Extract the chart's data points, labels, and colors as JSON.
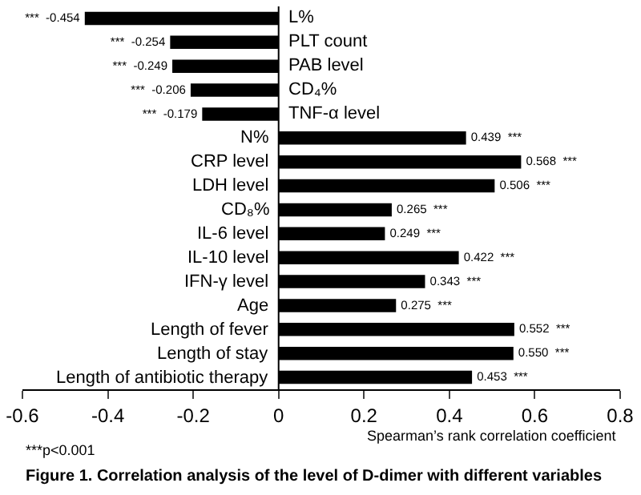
{
  "chart_data": {
    "type": "bar",
    "orientation": "horizontal",
    "title": "Figure 1. Correlation analysis of the level of D-dimer with different variables",
    "xlabel": "Spearman’s rank correlation coefficient",
    "categories": [
      "L%",
      "PLT count",
      "PAB level",
      "CD₄%",
      "TNF-α level",
      "N%",
      "CRP level",
      "LDH level",
      "CD₈%",
      "IL-6 level",
      "IL-10 level",
      "IFN-γ level",
      "Age",
      "Length of fever",
      "Length of stay",
      "Length of antibiotic therapy"
    ],
    "values": [
      -0.454,
      -0.254,
      -0.249,
      -0.206,
      -0.179,
      0.439,
      0.568,
      0.506,
      0.265,
      0.249,
      0.422,
      0.343,
      0.275,
      0.552,
      0.55,
      0.453
    ],
    "value_labels": [
      "***  -0.454",
      "***  -0.254",
      "***  -0.249",
      "***  -0.206",
      "***  -0.179",
      "0.439  ***",
      "0.568  ***",
      "0.506  ***",
      "0.265  ***",
      "0.249  ***",
      "0.422  ***",
      "0.343  ***",
      "0.275  ***",
      "0.552  ***",
      "0.550  ***",
      "0.453  ***"
    ],
    "color": "#000000",
    "xlim": [
      -0.6,
      0.8
    ],
    "xticks": [
      -0.6,
      -0.4,
      -0.2,
      0,
      0.2,
      0.4,
      0.6,
      0.8
    ],
    "legend": false,
    "annotations": [
      "***p<0.001"
    ]
  }
}
